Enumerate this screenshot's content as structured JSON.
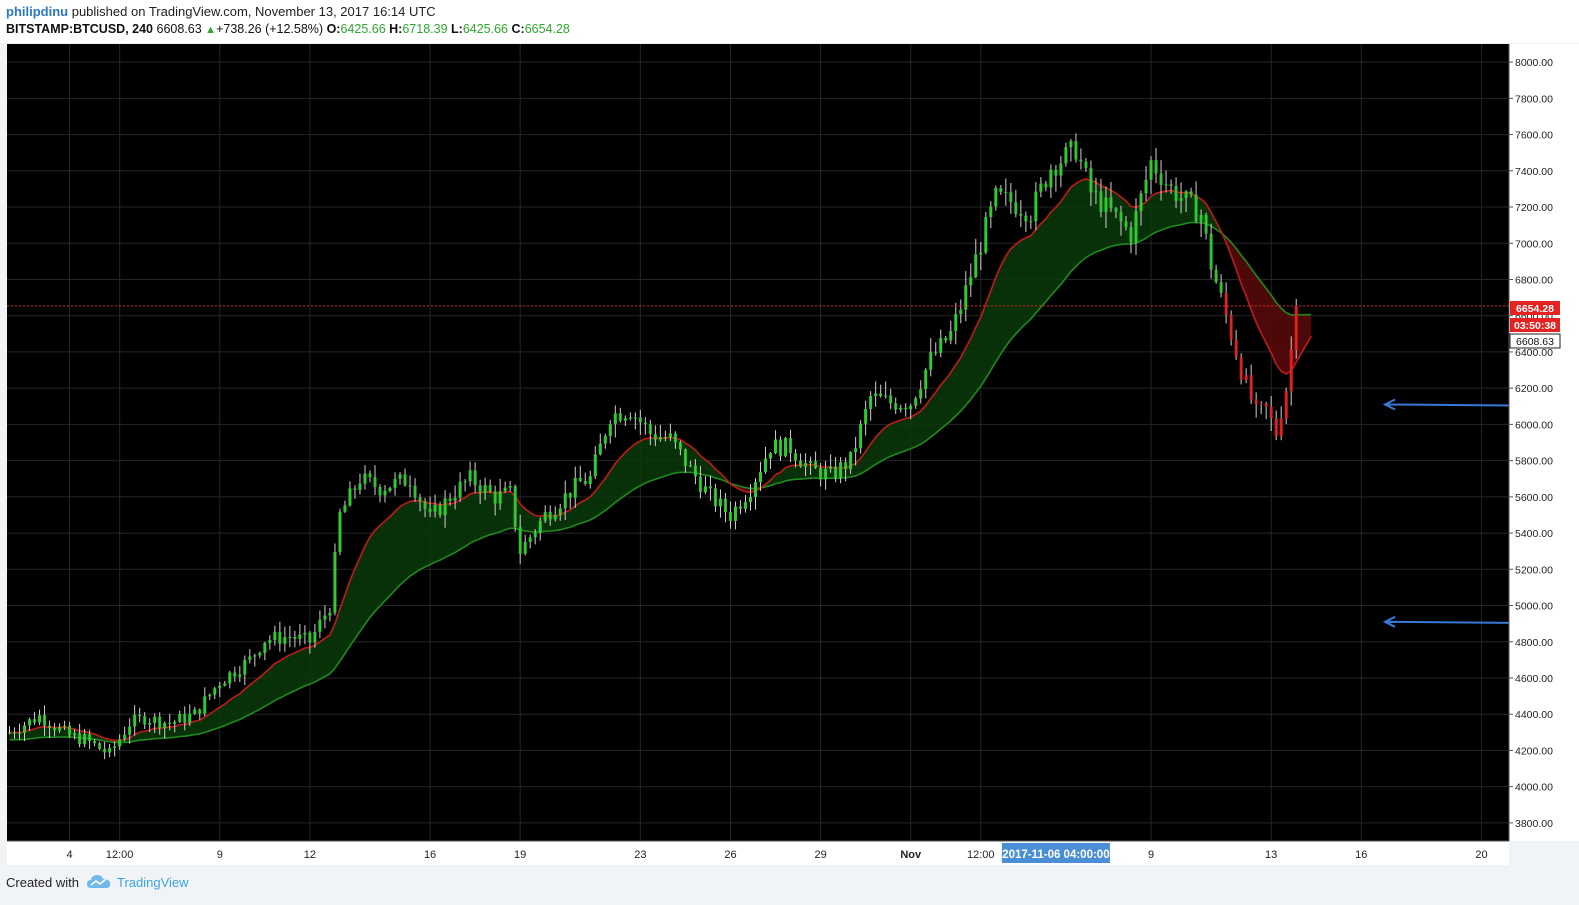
{
  "header": {
    "author": "philipdinu",
    "published_text": "published on TradingView.com, November 13, 2017 16:14 UTC",
    "symbol": "BITSTAMP:BTCUSD, 240",
    "last_price": "6608.63",
    "change": "+738.26 (+12.58%)",
    "o_label": "O:",
    "o_value": "6425.66",
    "h_label": "H:",
    "h_value": "6718.39",
    "l_label": "L:",
    "l_value": "6425.66",
    "c_label": "C:",
    "c_value": "6654.28"
  },
  "footer": {
    "created_with": "Created with",
    "brand": "TradingView",
    "logo_icon": "tradingview-cloud-icon"
  },
  "colors": {
    "background": "#000000",
    "up_candle": "#2ecc2e",
    "down_candle": "#e02020",
    "fast_ma": "#c21a1a",
    "slow_ma": "#1f8a1f",
    "bull_cloud": "#0b3a0b",
    "bear_cloud": "#5a0a0a",
    "arrow": "#3a78d8",
    "price_label_red": "#e52222",
    "crosshair_label": "#4a8fd6"
  },
  "chart_data": {
    "type": "candlestick",
    "ylim": [
      3700,
      8100
    ],
    "yticks": [
      "8000.00",
      "7800.00",
      "7600.00",
      "7400.00",
      "7200.00",
      "7000.00",
      "6800.00",
      "6600.00",
      "6400.00",
      "6200.00",
      "6000.00",
      "5800.00",
      "5600.00",
      "5400.00",
      "5200.00",
      "5000.00",
      "4800.00",
      "4600.00",
      "4400.00",
      "4200.00",
      "4000.00",
      "3800.00"
    ],
    "xticks": [
      {
        "label": "4",
        "t": 12
      },
      {
        "label": "12:00",
        "t": 22
      },
      {
        "label": "9",
        "t": 42
      },
      {
        "label": "12",
        "t": 60
      },
      {
        "label": "16",
        "t": 84
      },
      {
        "label": "19",
        "t": 102
      },
      {
        "label": "23",
        "t": 126
      },
      {
        "label": "26",
        "t": 144
      },
      {
        "label": "29",
        "t": 162
      },
      {
        "label": "Nov",
        "t": 180
      },
      {
        "label": "12:00",
        "t": 194
      },
      {
        "label": "9",
        "t": 228
      },
      {
        "label": "13",
        "t": 252
      },
      {
        "label": "16",
        "t": 270
      },
      {
        "label": "20",
        "t": 294
      }
    ],
    "xlim": [
      -0.5,
      299.5
    ],
    "crosshair_date_label": "2017-11-06 04:00:00",
    "crosshair_t": 209,
    "current_price_label": "6654.28",
    "countdown_label": "03:50:38",
    "last_price_label": "6608.63",
    "current_price": 6654.28,
    "last_price": 6608.63,
    "keypoints": [
      [
        0,
        4300
      ],
      [
        6,
        4390
      ],
      [
        12,
        4280
      ],
      [
        15,
        4260
      ],
      [
        20,
        4180
      ],
      [
        24,
        4350
      ],
      [
        27,
        4380
      ],
      [
        32,
        4350
      ],
      [
        37,
        4400
      ],
      [
        42,
        4580
      ],
      [
        48,
        4700
      ],
      [
        51,
        4810
      ],
      [
        56,
        4830
      ],
      [
        60,
        4800
      ],
      [
        64,
        5000
      ],
      [
        66,
        5500
      ],
      [
        70,
        5700
      ],
      [
        74,
        5650
      ],
      [
        80,
        5700
      ],
      [
        84,
        5480
      ],
      [
        89,
        5630
      ],
      [
        92,
        5700
      ],
      [
        97,
        5600
      ],
      [
        100,
        5620
      ],
      [
        102,
        5300
      ],
      [
        107,
        5500
      ],
      [
        114,
        5680
      ],
      [
        116,
        5700
      ],
      [
        120,
        6050
      ],
      [
        124,
        6080
      ],
      [
        128,
        5950
      ],
      [
        132,
        5920
      ],
      [
        136,
        5750
      ],
      [
        140,
        5600
      ],
      [
        144,
        5500
      ],
      [
        148,
        5650
      ],
      [
        152,
        5880
      ],
      [
        156,
        5870
      ],
      [
        160,
        5750
      ],
      [
        164,
        5720
      ],
      [
        168,
        5800
      ],
      [
        172,
        6150
      ],
      [
        176,
        6120
      ],
      [
        180,
        6120
      ],
      [
        184,
        6360
      ],
      [
        188,
        6500
      ],
      [
        190,
        6650
      ],
      [
        194,
        7000
      ],
      [
        197,
        7250
      ],
      [
        200,
        7230
      ],
      [
        204,
        7170
      ],
      [
        208,
        7420
      ],
      [
        213,
        7520
      ],
      [
        216,
        7280
      ],
      [
        220,
        7170
      ],
      [
        224,
        7050
      ],
      [
        228,
        7450
      ],
      [
        232,
        7300
      ],
      [
        238,
        7160
      ],
      [
        240,
        6880
      ],
      [
        243,
        6600
      ],
      [
        246,
        6300
      ],
      [
        249,
        6060
      ],
      [
        251,
        6080
      ],
      [
        253,
        5950
      ],
      [
        255,
        6200
      ],
      [
        257,
        6620
      ]
    ],
    "annotations": [
      {
        "type": "arrow",
        "price": 6110,
        "from_x": 1510,
        "to_x": 1385
      },
      {
        "type": "arrow",
        "price": 4910,
        "from_x": 1510,
        "to_x": 1385
      }
    ]
  }
}
